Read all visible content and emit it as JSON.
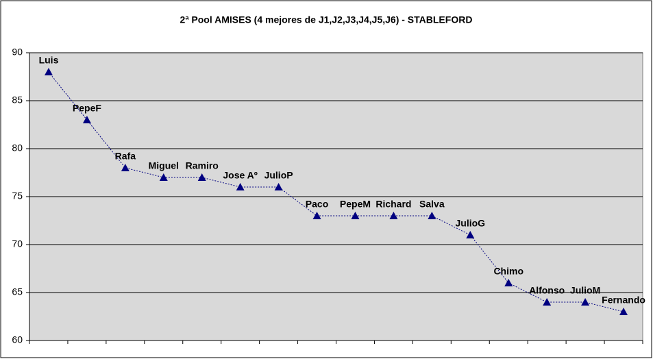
{
  "chart_data": {
    "type": "line",
    "title": "2ª Pool AMISES (4 mejores de J1,J2,J3,J4,J5,J6) - STABLEFORD",
    "categories": [
      "Luis",
      "PepeF",
      "Rafa",
      "Miguel",
      "Ramiro",
      "Jose Aº",
      "JulioP",
      "Paco",
      "PepeM",
      "Richard",
      "Salva",
      "JulioG",
      "Chimo",
      "Alfonso",
      "JulioM",
      "Fernando"
    ],
    "values": [
      88,
      83,
      78,
      77,
      77,
      76,
      76,
      73,
      73,
      73,
      73,
      71,
      66,
      64,
      64,
      63
    ],
    "color": "#000080",
    "ylim": [
      60,
      90
    ],
    "yticks": [
      60,
      65,
      70,
      75,
      80,
      85,
      90
    ],
    "grid": true
  }
}
